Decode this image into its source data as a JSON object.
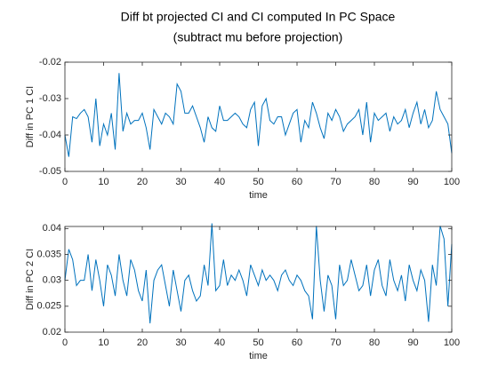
{
  "chart_data": [
    {
      "type": "line",
      "title": [
        "Diff bt projected CI and CI computed In PC Space",
        "(subtract mu before projection)"
      ],
      "xlabel": "time",
      "ylabel": "Diff in PC 1 CI",
      "x": [
        0,
        1,
        2,
        3,
        4,
        5,
        6,
        7,
        8,
        9,
        10,
        11,
        12,
        13,
        14,
        15,
        16,
        17,
        18,
        19,
        20,
        21,
        22,
        23,
        24,
        25,
        26,
        27,
        28,
        29,
        30,
        31,
        32,
        33,
        34,
        35,
        36,
        37,
        38,
        39,
        40,
        41,
        42,
        43,
        44,
        45,
        46,
        47,
        48,
        49,
        50,
        51,
        52,
        53,
        54,
        55,
        56,
        57,
        58,
        59,
        60,
        61,
        62,
        63,
        64,
        65,
        66,
        67,
        68,
        69,
        70,
        71,
        72,
        73,
        74,
        75,
        76,
        77,
        78,
        79,
        80,
        81,
        82,
        83,
        84,
        85,
        86,
        87,
        88,
        89,
        90,
        91,
        92,
        93,
        94,
        95,
        96,
        97,
        98,
        99,
        100
      ],
      "series": [
        {
          "color": "#0072bd",
          "values": [
            -0.04,
            -0.046,
            -0.035,
            -0.0355,
            -0.034,
            -0.033,
            -0.035,
            -0.042,
            -0.03,
            -0.043,
            -0.037,
            -0.04,
            -0.034,
            -0.044,
            -0.023,
            -0.039,
            -0.034,
            -0.037,
            -0.036,
            -0.036,
            -0.034,
            -0.038,
            -0.044,
            -0.033,
            -0.035,
            -0.037,
            -0.034,
            -0.035,
            -0.037,
            -0.026,
            -0.028,
            -0.034,
            -0.034,
            -0.032,
            -0.035,
            -0.038,
            -0.042,
            -0.035,
            -0.038,
            -0.039,
            -0.032,
            -0.036,
            -0.036,
            -0.035,
            -0.034,
            -0.035,
            -0.037,
            -0.038,
            -0.033,
            -0.031,
            -0.043,
            -0.032,
            -0.03,
            -0.036,
            -0.037,
            -0.035,
            -0.035,
            -0.04,
            -0.037,
            -0.034,
            -0.033,
            -0.042,
            -0.036,
            -0.038,
            -0.031,
            -0.034,
            -0.038,
            -0.041,
            -0.034,
            -0.036,
            -0.033,
            -0.035,
            -0.039,
            -0.037,
            -0.036,
            -0.035,
            -0.033,
            -0.04,
            -0.031,
            -0.042,
            -0.034,
            -0.036,
            -0.035,
            -0.034,
            -0.039,
            -0.035,
            -0.037,
            -0.036,
            -0.033,
            -0.038,
            -0.034,
            -0.031,
            -0.037,
            -0.033,
            -0.038,
            -0.036,
            -0.028,
            -0.033,
            -0.035,
            -0.037,
            -0.045
          ]
        }
      ],
      "xlim": [
        0,
        100
      ],
      "xticks": [
        0,
        10,
        20,
        30,
        40,
        50,
        60,
        70,
        80,
        90,
        100
      ],
      "ylim": [
        -0.05,
        -0.02
      ],
      "yticks": [
        -0.05,
        -0.04,
        -0.03,
        -0.02
      ]
    },
    {
      "type": "line",
      "xlabel": "time",
      "ylabel": "Diff in PC 2 CI",
      "x": [
        0,
        1,
        2,
        3,
        4,
        5,
        6,
        7,
        8,
        9,
        10,
        11,
        12,
        13,
        14,
        15,
        16,
        17,
        18,
        19,
        20,
        21,
        22,
        23,
        24,
        25,
        26,
        27,
        28,
        29,
        30,
        31,
        32,
        33,
        34,
        35,
        36,
        37,
        38,
        39,
        40,
        41,
        42,
        43,
        44,
        45,
        46,
        47,
        48,
        49,
        50,
        51,
        52,
        53,
        54,
        55,
        56,
        57,
        58,
        59,
        60,
        61,
        62,
        63,
        64,
        65,
        66,
        67,
        68,
        69,
        70,
        71,
        72,
        73,
        74,
        75,
        76,
        77,
        78,
        79,
        80,
        81,
        82,
        83,
        84,
        85,
        86,
        87,
        88,
        89,
        90,
        91,
        92,
        93,
        94,
        95,
        96,
        97,
        98,
        99,
        100
      ],
      "series": [
        {
          "color": "#0072bd",
          "values": [
            0.03,
            0.036,
            0.034,
            0.029,
            0.03,
            0.03,
            0.035,
            0.028,
            0.034,
            0.03,
            0.025,
            0.033,
            0.031,
            0.027,
            0.035,
            0.03,
            0.027,
            0.034,
            0.032,
            0.028,
            0.026,
            0.032,
            0.0217,
            0.03,
            0.032,
            0.033,
            0.029,
            0.025,
            0.032,
            0.028,
            0.024,
            0.03,
            0.031,
            0.028,
            0.026,
            0.027,
            0.033,
            0.029,
            0.041,
            0.028,
            0.029,
            0.034,
            0.029,
            0.031,
            0.03,
            0.032,
            0.03,
            0.027,
            0.033,
            0.031,
            0.029,
            0.032,
            0.03,
            0.031,
            0.03,
            0.028,
            0.031,
            0.032,
            0.03,
            0.029,
            0.031,
            0.03,
            0.028,
            0.027,
            0.0225,
            0.0405,
            0.03,
            0.024,
            0.031,
            0.029,
            0.0225,
            0.033,
            0.029,
            0.03,
            0.034,
            0.031,
            0.028,
            0.029,
            0.033,
            0.027,
            0.032,
            0.034,
            0.029,
            0.027,
            0.034,
            0.03,
            0.028,
            0.031,
            0.026,
            0.033,
            0.03,
            0.028,
            0.032,
            0.03,
            0.022,
            0.033,
            0.029,
            0.0405,
            0.038,
            0.025,
            0.037
          ]
        }
      ],
      "xlim": [
        0,
        100
      ],
      "xticks": [
        0,
        10,
        20,
        30,
        40,
        50,
        60,
        70,
        80,
        90,
        100
      ],
      "ylim": [
        0.02,
        0.0404
      ],
      "yticks": [
        0.02,
        0.025,
        0.03,
        0.035,
        0.04
      ]
    }
  ]
}
